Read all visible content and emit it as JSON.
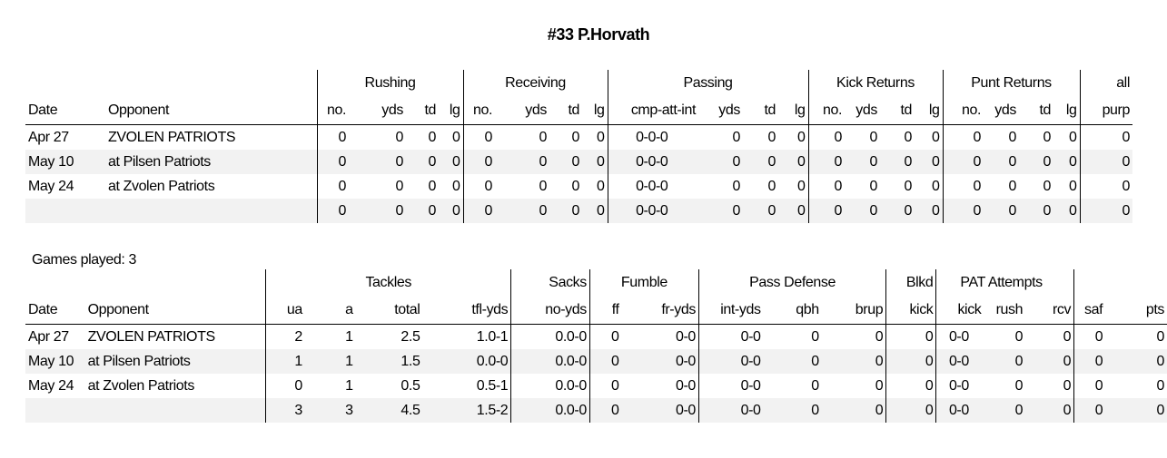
{
  "title": "#33 P.Horvath",
  "offense": {
    "groups": {
      "rushing": "Rushing",
      "receiving": "Receiving",
      "passing": "Passing",
      "kick_returns": "Kick Returns",
      "punt_returns": "Punt Returns",
      "all": "all"
    },
    "headers": [
      "Date",
      "Opponent",
      "no.",
      "yds",
      "td",
      "lg",
      "no.",
      "yds",
      "td",
      "lg",
      "cmp-att-int",
      "yds",
      "td",
      "lg",
      "no.",
      "yds",
      "td",
      "lg",
      "no.",
      "yds",
      "td",
      "lg",
      "purp"
    ],
    "rows": [
      [
        "Apr 27",
        "ZVOLEN PATRIOTS",
        "0",
        "0",
        "0",
        "0",
        "0",
        "0",
        "0",
        "0",
        "0-0-0",
        "0",
        "0",
        "0",
        "0",
        "0",
        "0",
        "0",
        "0",
        "0",
        "0",
        "0",
        "0"
      ],
      [
        "May 10",
        "at Pilsen Patriots",
        "0",
        "0",
        "0",
        "0",
        "0",
        "0",
        "0",
        "0",
        "0-0-0",
        "0",
        "0",
        "0",
        "0",
        "0",
        "0",
        "0",
        "0",
        "0",
        "0",
        "0",
        "0"
      ],
      [
        "May 24",
        "at Zvolen Patriots",
        "0",
        "0",
        "0",
        "0",
        "0",
        "0",
        "0",
        "0",
        "0-0-0",
        "0",
        "0",
        "0",
        "0",
        "0",
        "0",
        "0",
        "0",
        "0",
        "0",
        "0",
        "0"
      ]
    ],
    "totals": [
      "",
      "",
      "0",
      "0",
      "0",
      "0",
      "0",
      "0",
      "0",
      "0",
      "0-0-0",
      "0",
      "0",
      "0",
      "0",
      "0",
      "0",
      "0",
      "0",
      "0",
      "0",
      "0",
      "0"
    ]
  },
  "games_played": "Games played: 3",
  "defense": {
    "groups": {
      "tackles": "Tackles",
      "sacks": "Sacks",
      "fumble": "Fumble",
      "pass_defense": "Pass Defense",
      "blkd": "Blkd",
      "pat": "PAT Attempts"
    },
    "headers": [
      "Date",
      "Opponent",
      "ua",
      "a",
      "total",
      "tfl-yds",
      "no-yds",
      "ff",
      "fr-yds",
      "int-yds",
      "qbh",
      "brup",
      "kick",
      "kick",
      "rush",
      "rcv",
      "saf",
      "pts"
    ],
    "rows": [
      [
        "Apr 27",
        "ZVOLEN PATRIOTS",
        "2",
        "1",
        "2.5",
        "1.0-1",
        "0.0-0",
        "0",
        "0-0",
        "0-0",
        "0",
        "0",
        "0",
        "0-0",
        "0",
        "0",
        "0",
        "0"
      ],
      [
        "May 10",
        "at Pilsen Patriots",
        "1",
        "1",
        "1.5",
        "0.0-0",
        "0.0-0",
        "0",
        "0-0",
        "0-0",
        "0",
        "0",
        "0",
        "0-0",
        "0",
        "0",
        "0",
        "0"
      ],
      [
        "May 24",
        "at Zvolen Patriots",
        "0",
        "1",
        "0.5",
        "0.5-1",
        "0.0-0",
        "0",
        "0-0",
        "0-0",
        "0",
        "0",
        "0",
        "0-0",
        "0",
        "0",
        "0",
        "0"
      ]
    ],
    "totals": [
      "",
      "",
      "3",
      "3",
      "4.5",
      "1.5-2",
      "0.0-0",
      "0",
      "0-0",
      "0-0",
      "0",
      "0",
      "0",
      "0-0",
      "0",
      "0",
      "0",
      "0"
    ]
  }
}
